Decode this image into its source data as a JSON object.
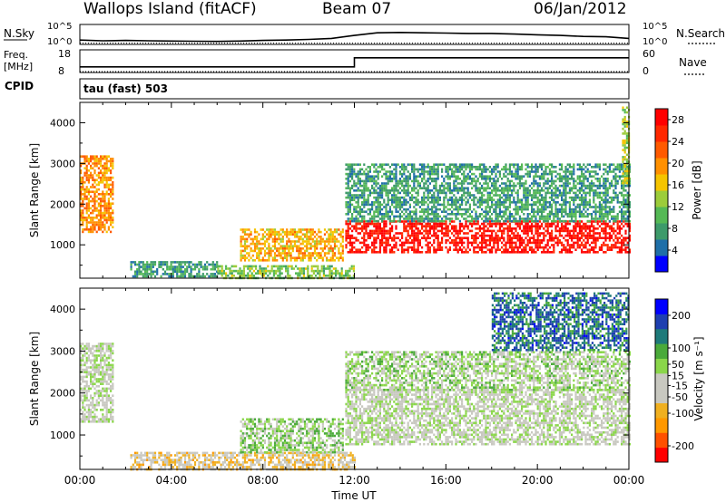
{
  "header": {
    "station": "Wallops Island (fitACF)",
    "beam": "Beam 07",
    "date": "06/Jan/2012"
  },
  "left_labels": {
    "nsky": "N.Sky",
    "freq_line1": "Freq.",
    "freq_line2": "[MHz]",
    "cpid": "CPID"
  },
  "right_labels": {
    "nsearch": "N.Search",
    "nave": "Nave"
  },
  "cpid_text": "tau (fast) 503",
  "colors": {
    "power_scale": [
      "#0000ff",
      "#1f6fa8",
      "#3d9a6a",
      "#55b955",
      "#9ccc3a",
      "#f5c400",
      "#ff9000",
      "#ff5a00",
      "#ff2800",
      "#ff0000"
    ],
    "velocity_scale": [
      "#ff0000",
      "#ff5000",
      "#ff9800",
      "#f0b020",
      "#c8c8c0",
      "#c8c8c0",
      "#8ad64a",
      "#4aaa3a",
      "#1e7a7a",
      "#1e3fb0",
      "#0000ff"
    ]
  },
  "chart_data": [
    {
      "type": "line",
      "name": "noise-panel",
      "left_axis": {
        "label": "N.Sky",
        "ticks": [
          "10^5",
          "10^0"
        ]
      },
      "right_axis": {
        "label": "N.Search",
        "ticks": [
          "10^5",
          "10^0"
        ]
      },
      "series": [
        {
          "name": "N.Sky",
          "style": "solid",
          "x_hours": [
            0,
            1,
            2,
            3,
            4,
            5,
            6,
            7,
            8,
            9,
            10,
            11,
            12,
            13,
            14,
            15,
            16,
            17,
            18,
            19,
            20,
            21,
            22,
            23,
            24
          ],
          "values_frac": [
            0.22,
            0.18,
            0.2,
            0.18,
            0.17,
            0.16,
            0.15,
            0.17,
            0.2,
            0.22,
            0.25,
            0.3,
            0.45,
            0.58,
            0.6,
            0.58,
            0.57,
            0.55,
            0.55,
            0.52,
            0.48,
            0.45,
            0.4,
            0.38,
            0.3
          ]
        },
        {
          "name": "N.Search",
          "style": "dotted",
          "x_hours": [
            0,
            24
          ],
          "values_frac": [
            0.02,
            0.02
          ]
        }
      ]
    },
    {
      "type": "line",
      "name": "freq-panel",
      "left_axis": {
        "label": "Freq. [MHz]",
        "ticks": [
          18,
          8
        ],
        "range": [
          8,
          18
        ]
      },
      "right_axis": {
        "label": "Nave",
        "ticks": [
          60,
          0
        ],
        "range": [
          0,
          60
        ]
      },
      "series": [
        {
          "name": "Freq.",
          "style": "solid",
          "x_hours": [
            0,
            12,
            12,
            24
          ],
          "values": [
            10.5,
            10.5,
            14.5,
            14.5
          ]
        },
        {
          "name": "Nave",
          "style": "dotted",
          "x_hours": [
            0,
            24
          ],
          "values": [
            0,
            0
          ]
        }
      ]
    },
    {
      "type": "heatmap",
      "name": "power",
      "xlabel": "Time UT",
      "ylabel": "Slant Range [km]",
      "xlim_hours": [
        0,
        24
      ],
      "ylim": [
        180,
        4500
      ],
      "yticks": [
        1000,
        2000,
        3000,
        4000
      ],
      "colorbar": {
        "label": "Power [dB]",
        "ticks": [
          4,
          8,
          12,
          16,
          20,
          24,
          28
        ],
        "range": [
          0,
          30
        ]
      },
      "regions": [
        {
          "t": [
            0.0,
            1.4
          ],
          "r": [
            1300,
            3200
          ],
          "val": 20
        },
        {
          "t": [
            2.2,
            6.0
          ],
          "r": [
            200,
            600
          ],
          "val": 8
        },
        {
          "t": [
            6.0,
            12.0
          ],
          "r": [
            200,
            500
          ],
          "val": 12
        },
        {
          "t": [
            7.0,
            11.5
          ],
          "r": [
            600,
            1400
          ],
          "val": 18
        },
        {
          "t": [
            11.6,
            24.0
          ],
          "r": [
            800,
            1600
          ],
          "val": 28
        },
        {
          "t": [
            11.6,
            24.0
          ],
          "r": [
            1600,
            3000
          ],
          "val": 8
        },
        {
          "t": [
            23.7,
            24.0
          ],
          "r": [
            2500,
            4400
          ],
          "val": 14
        }
      ]
    },
    {
      "type": "heatmap",
      "name": "velocity",
      "xlabel": "Time UT",
      "ylabel": "Slant Range [km]",
      "xlim_hours": [
        0,
        24
      ],
      "ylim": [
        180,
        4500
      ],
      "yticks": [
        1000,
        2000,
        3000,
        4000
      ],
      "xticks": [
        "00:00",
        "04:00",
        "08:00",
        "12:00",
        "16:00",
        "20:00",
        "00:00"
      ],
      "colorbar": {
        "label": "Velocity [m s⁻¹]",
        "ticks": [
          -200,
          -100,
          -50,
          -15,
          15,
          50,
          100,
          200
        ],
        "range": [
          -250,
          250
        ]
      },
      "regions": [
        {
          "t": [
            0.0,
            1.4
          ],
          "r": [
            1300,
            3200
          ],
          "val": 0
        },
        {
          "t": [
            2.2,
            12.0
          ],
          "r": [
            200,
            600
          ],
          "val": -60
        },
        {
          "t": [
            7.0,
            11.5
          ],
          "r": [
            600,
            1400
          ],
          "val": 40
        },
        {
          "t": [
            11.6,
            24.0
          ],
          "r": [
            800,
            2100
          ],
          "val": 0
        },
        {
          "t": [
            11.6,
            24.0
          ],
          "r": [
            2100,
            3000
          ],
          "val": 25
        },
        {
          "t": [
            18.0,
            24.0
          ],
          "r": [
            3000,
            4400
          ],
          "val": 150
        }
      ]
    }
  ]
}
